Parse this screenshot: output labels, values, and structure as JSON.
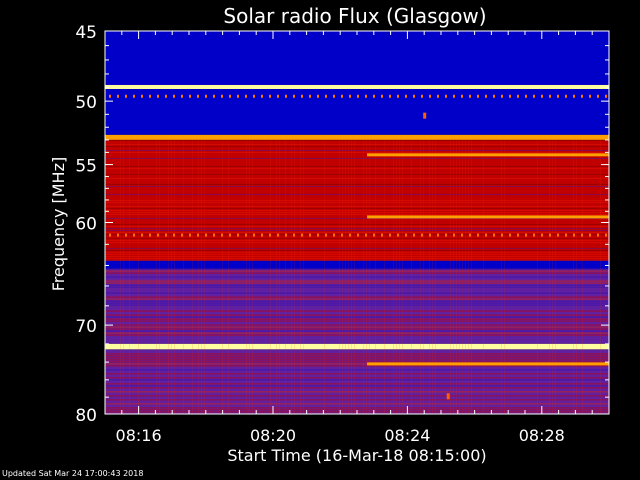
{
  "chart_data": {
    "type": "heatmap",
    "title": "Solar radio Flux (Glasgow)",
    "xlabel": "Start Time (16-Mar-18 08:15:00)",
    "ylabel": "Frequency [MHz]",
    "x_range_minutes": [
      0,
      15
    ],
    "x_ticks": [
      {
        "minute": 1,
        "label": "08:16"
      },
      {
        "minute": 5,
        "label": "08:20"
      },
      {
        "minute": 9,
        "label": "08:24"
      },
      {
        "minute": 13,
        "label": "08:28"
      }
    ],
    "y_range_mhz": [
      45,
      80
    ],
    "y_axis_inverted": true,
    "y_scale": "log",
    "y_ticks": [
      45,
      50,
      55,
      60,
      70,
      80
    ],
    "bands_mhz": [
      {
        "from": 45.0,
        "to": 48.8,
        "level": "low"
      },
      {
        "from": 48.8,
        "to": 49.1,
        "level": "very-high"
      },
      {
        "from": 49.1,
        "to": 52.6,
        "level": "low"
      },
      {
        "from": 52.6,
        "to": 53.0,
        "level": "high"
      },
      {
        "from": 53.0,
        "to": 63.5,
        "level": "medium"
      },
      {
        "from": 63.5,
        "to": 64.3,
        "level": "low"
      },
      {
        "from": 64.3,
        "to": 72.0,
        "level": "medium-low"
      },
      {
        "from": 72.0,
        "to": 72.6,
        "level": "very-high"
      },
      {
        "from": 72.6,
        "to": 80.0,
        "level": "medium-low"
      }
    ],
    "features": [
      {
        "type": "line",
        "mhz": 59.5,
        "from_minute": 7.8,
        "to_minute": 15.0,
        "level": "high"
      },
      {
        "type": "line",
        "mhz": 54.2,
        "from_minute": 7.8,
        "to_minute": 15.0,
        "level": "high"
      },
      {
        "type": "line",
        "mhz": 74.2,
        "from_minute": 7.8,
        "to_minute": 15.0,
        "level": "high"
      },
      {
        "type": "spot",
        "mhz": 51.1,
        "minute": 9.5,
        "level": "high"
      },
      {
        "type": "spot",
        "mhz": 77.9,
        "minute": 10.2,
        "level": "high"
      }
    ],
    "grid": false,
    "colors": {
      "background": "#000000",
      "axes": "#ffffff",
      "colormap": [
        "#0000c8",
        "#6020a0",
        "#c00000",
        "#ff2000",
        "#ffa000",
        "#ffffa0"
      ]
    }
  },
  "footer": {
    "updated_text": "Updated Sat Mar 24 17:00:43 2018"
  }
}
